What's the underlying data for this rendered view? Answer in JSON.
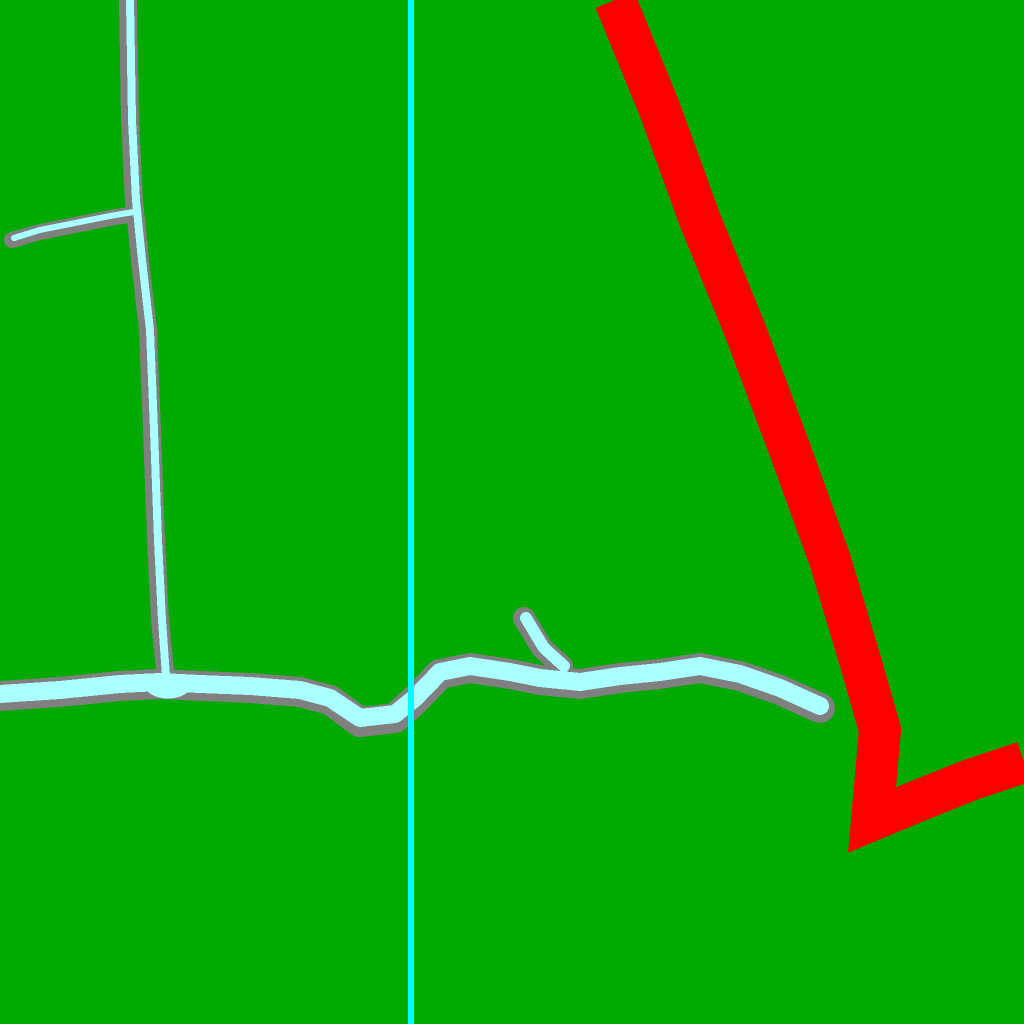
{
  "map": {
    "colors": {
      "land": "#00aa00",
      "river_fill": "#aaffff",
      "river_bank": "#808080",
      "boundary_line": "#00ffff",
      "route": "#ff0000"
    },
    "features": {
      "rivers": [
        "main-river",
        "north-tributary",
        "west-branch",
        "small-inlet"
      ],
      "boundaries": [
        "vertical-boundary-line"
      ],
      "routes": [
        "red-route"
      ]
    }
  }
}
